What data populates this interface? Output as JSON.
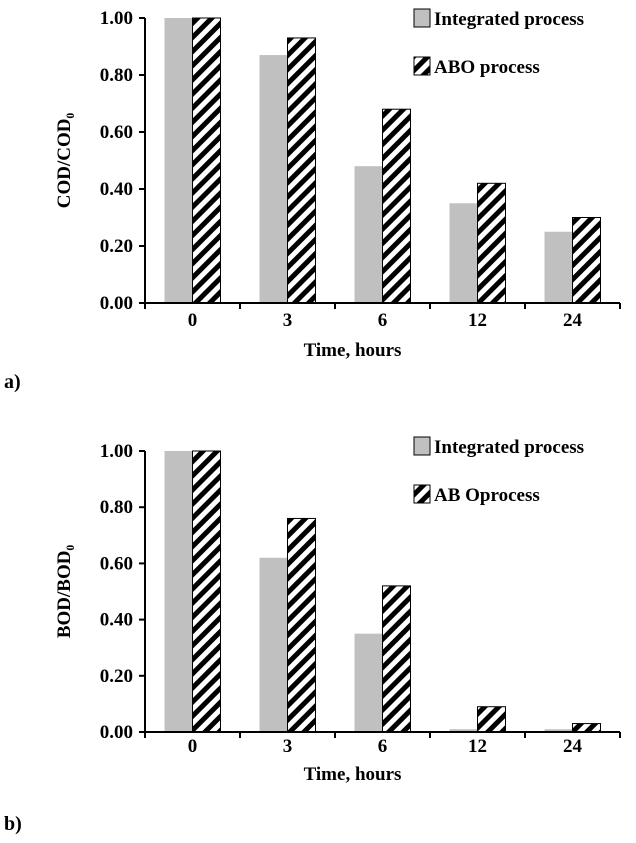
{
  "colors": {
    "integrated": "#c0c0c0",
    "abo_bg": "#ffffff",
    "stroke": "#000000"
  },
  "chart_data": [
    {
      "type": "bar",
      "panel_label": "a)",
      "categories": [
        "0",
        "3",
        "6",
        "12",
        "24"
      ],
      "xlabel": "Time, hours",
      "ylabel": "COD/COD₀",
      "ylim": [
        0,
        1
      ],
      "yticks": [
        "0.00",
        "0.20",
        "0.40",
        "0.60",
        "0.80",
        "1.00"
      ],
      "legend_position": "top-right",
      "series": [
        {
          "name": "Integrated process",
          "values": [
            1.0,
            0.87,
            0.48,
            0.35,
            0.25
          ]
        },
        {
          "name": "ABO process",
          "values": [
            1.0,
            0.93,
            0.68,
            0.42,
            0.3
          ]
        }
      ]
    },
    {
      "type": "bar",
      "panel_label": "b)",
      "categories": [
        "0",
        "3",
        "6",
        "12",
        "24"
      ],
      "xlabel": "Time, hours",
      "ylabel": "BOD/BOD₀",
      "ylim": [
        0,
        1
      ],
      "yticks": [
        "0.00",
        "0.20",
        "0.40",
        "0.60",
        "0.80",
        "1.00"
      ],
      "legend_position": "top-right",
      "series": [
        {
          "name": "Integrated process",
          "values": [
            1.0,
            0.62,
            0.35,
            0.01,
            0.01
          ]
        },
        {
          "name": "AB Oprocess",
          "values": [
            1.0,
            0.76,
            0.52,
            0.09,
            0.03
          ]
        }
      ]
    }
  ]
}
